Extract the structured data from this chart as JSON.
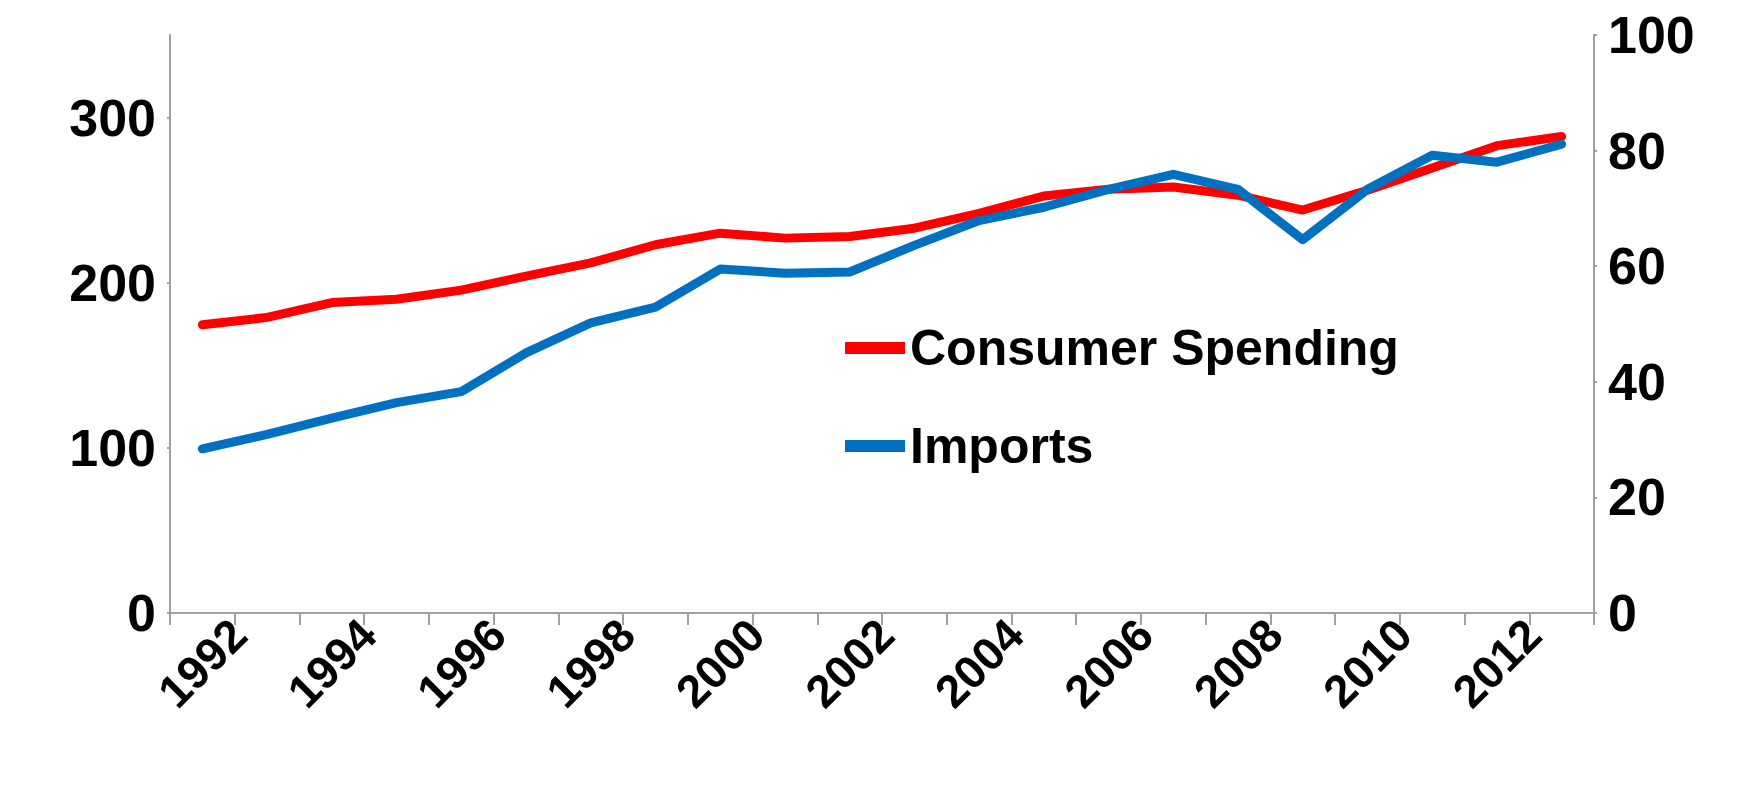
{
  "chart_data": {
    "type": "line",
    "categories": [
      "1992",
      null,
      "1994",
      null,
      "1996",
      null,
      "1998",
      null,
      "2000",
      null,
      "2002",
      null,
      "2004",
      null,
      "2006",
      null,
      "2008",
      null,
      "2010",
      null,
      "2012",
      null
    ],
    "series": [
      {
        "name": "Consumer Spending",
        "color": "#ff0000",
        "values": [
          174.5,
          179,
          188,
          190,
          195.5,
          204,
          212,
          223,
          230,
          227,
          228,
          233,
          242,
          252.5,
          256.6,
          258,
          253,
          244,
          256,
          269.5,
          283,
          288.5
        ]
      },
      {
        "name": "Imports",
        "color": "#0070c0",
        "axis": "y2",
        "values": [
          28.4,
          30.9,
          33.7,
          36.4,
          38.3,
          45,
          50.2,
          52.9,
          59.5,
          58.8,
          59,
          63.6,
          67.9,
          70.2,
          73.3,
          75.9,
          73.3,
          64.6,
          73.3,
          79.2,
          78,
          81.1
        ]
      }
    ],
    "ylim": [
      0,
      350
    ],
    "yticks": [
      0,
      100,
      200,
      300
    ],
    "y2lim": [
      0,
      100
    ],
    "y2ticks": [
      0,
      20,
      40,
      60,
      80,
      100
    ],
    "grid": false,
    "legend": "right",
    "line_style": "solid"
  }
}
